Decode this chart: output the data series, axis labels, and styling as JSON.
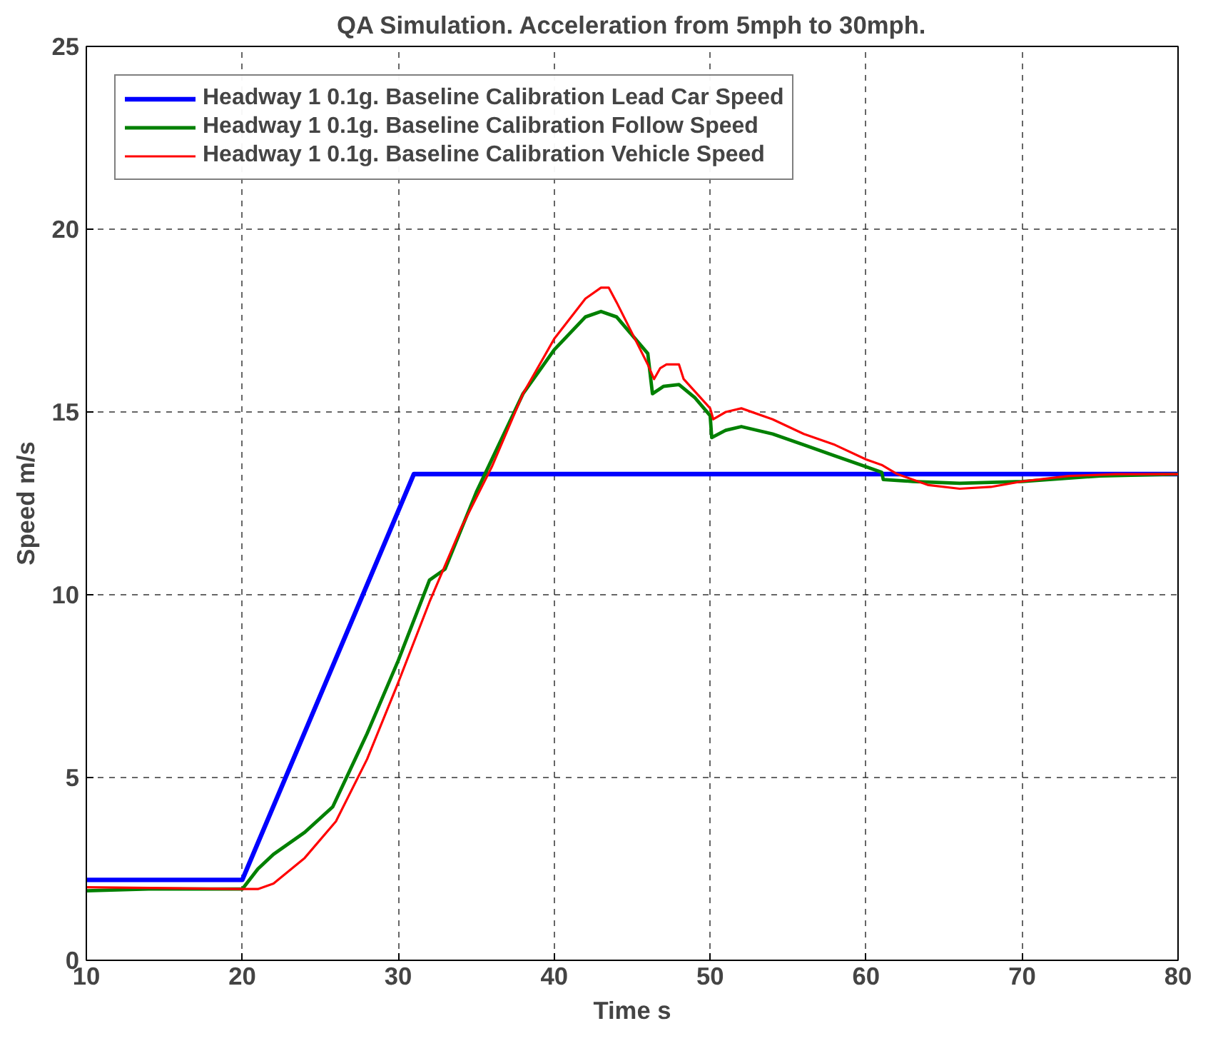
{
  "chart_data": {
    "type": "line",
    "title": "QA Simulation. Acceleration from 5mph to 30mph.",
    "xlabel": "Time s",
    "ylabel": "Speed m/s",
    "xlim": [
      10,
      80
    ],
    "ylim": [
      0,
      25
    ],
    "xticks": [
      10,
      20,
      30,
      40,
      50,
      60,
      70,
      80
    ],
    "yticks": [
      0,
      5,
      10,
      15,
      20,
      25
    ],
    "grid": true,
    "legend": "top left",
    "line_style": "solid",
    "series": [
      {
        "name": "Headway 1 0.1g. Baseline Calibration Lead Car Speed",
        "color": "#0000ff",
        "x": [
          10,
          20,
          31,
          80
        ],
        "values": [
          2.2,
          2.2,
          13.3,
          13.3
        ]
      },
      {
        "name": "Headway 1 0.1g. Baseline Calibration Follow Speed",
        "color": "#008000",
        "x": [
          10,
          14,
          20,
          21,
          22,
          24,
          25.8,
          28,
          30,
          32,
          33,
          35,
          38,
          40,
          42,
          43,
          44,
          46,
          46.3,
          47,
          48,
          49,
          50,
          50.1,
          51,
          52,
          54,
          56,
          58,
          60,
          61,
          61.1,
          63,
          66,
          70,
          75,
          80
        ],
        "values": [
          1.9,
          1.95,
          1.95,
          2.5,
          2.9,
          3.5,
          4.2,
          6.2,
          8.2,
          10.4,
          10.7,
          12.8,
          15.5,
          16.7,
          17.6,
          17.75,
          17.6,
          16.6,
          15.5,
          15.7,
          15.75,
          15.4,
          14.9,
          14.3,
          14.5,
          14.6,
          14.4,
          14.1,
          13.8,
          13.5,
          13.35,
          13.15,
          13.1,
          13.05,
          13.1,
          13.25,
          13.3
        ]
      },
      {
        "name": "Headway 1 0.1g. Baseline Calibration Vehicle Speed",
        "color": "#ff0000",
        "x": [
          10,
          20,
          21,
          22,
          24,
          26,
          28,
          30,
          32,
          34,
          36,
          38,
          40,
          42,
          43,
          43.5,
          44,
          46,
          46.4,
          46.8,
          47.2,
          48,
          48.3,
          50,
          50.2,
          51,
          52,
          54,
          56,
          58,
          60,
          61,
          62,
          64,
          66,
          68,
          70,
          73,
          76,
          80
        ],
        "values": [
          2.0,
          1.95,
          1.95,
          2.1,
          2.8,
          3.8,
          5.5,
          7.6,
          9.8,
          11.8,
          13.5,
          15.5,
          17.0,
          18.1,
          18.4,
          18.4,
          18.0,
          16.3,
          15.9,
          16.2,
          16.3,
          16.3,
          15.9,
          15.1,
          14.8,
          15.0,
          15.1,
          14.8,
          14.4,
          14.1,
          13.7,
          13.55,
          13.3,
          13.0,
          12.9,
          12.95,
          13.1,
          13.25,
          13.3,
          13.3
        ]
      }
    ]
  }
}
